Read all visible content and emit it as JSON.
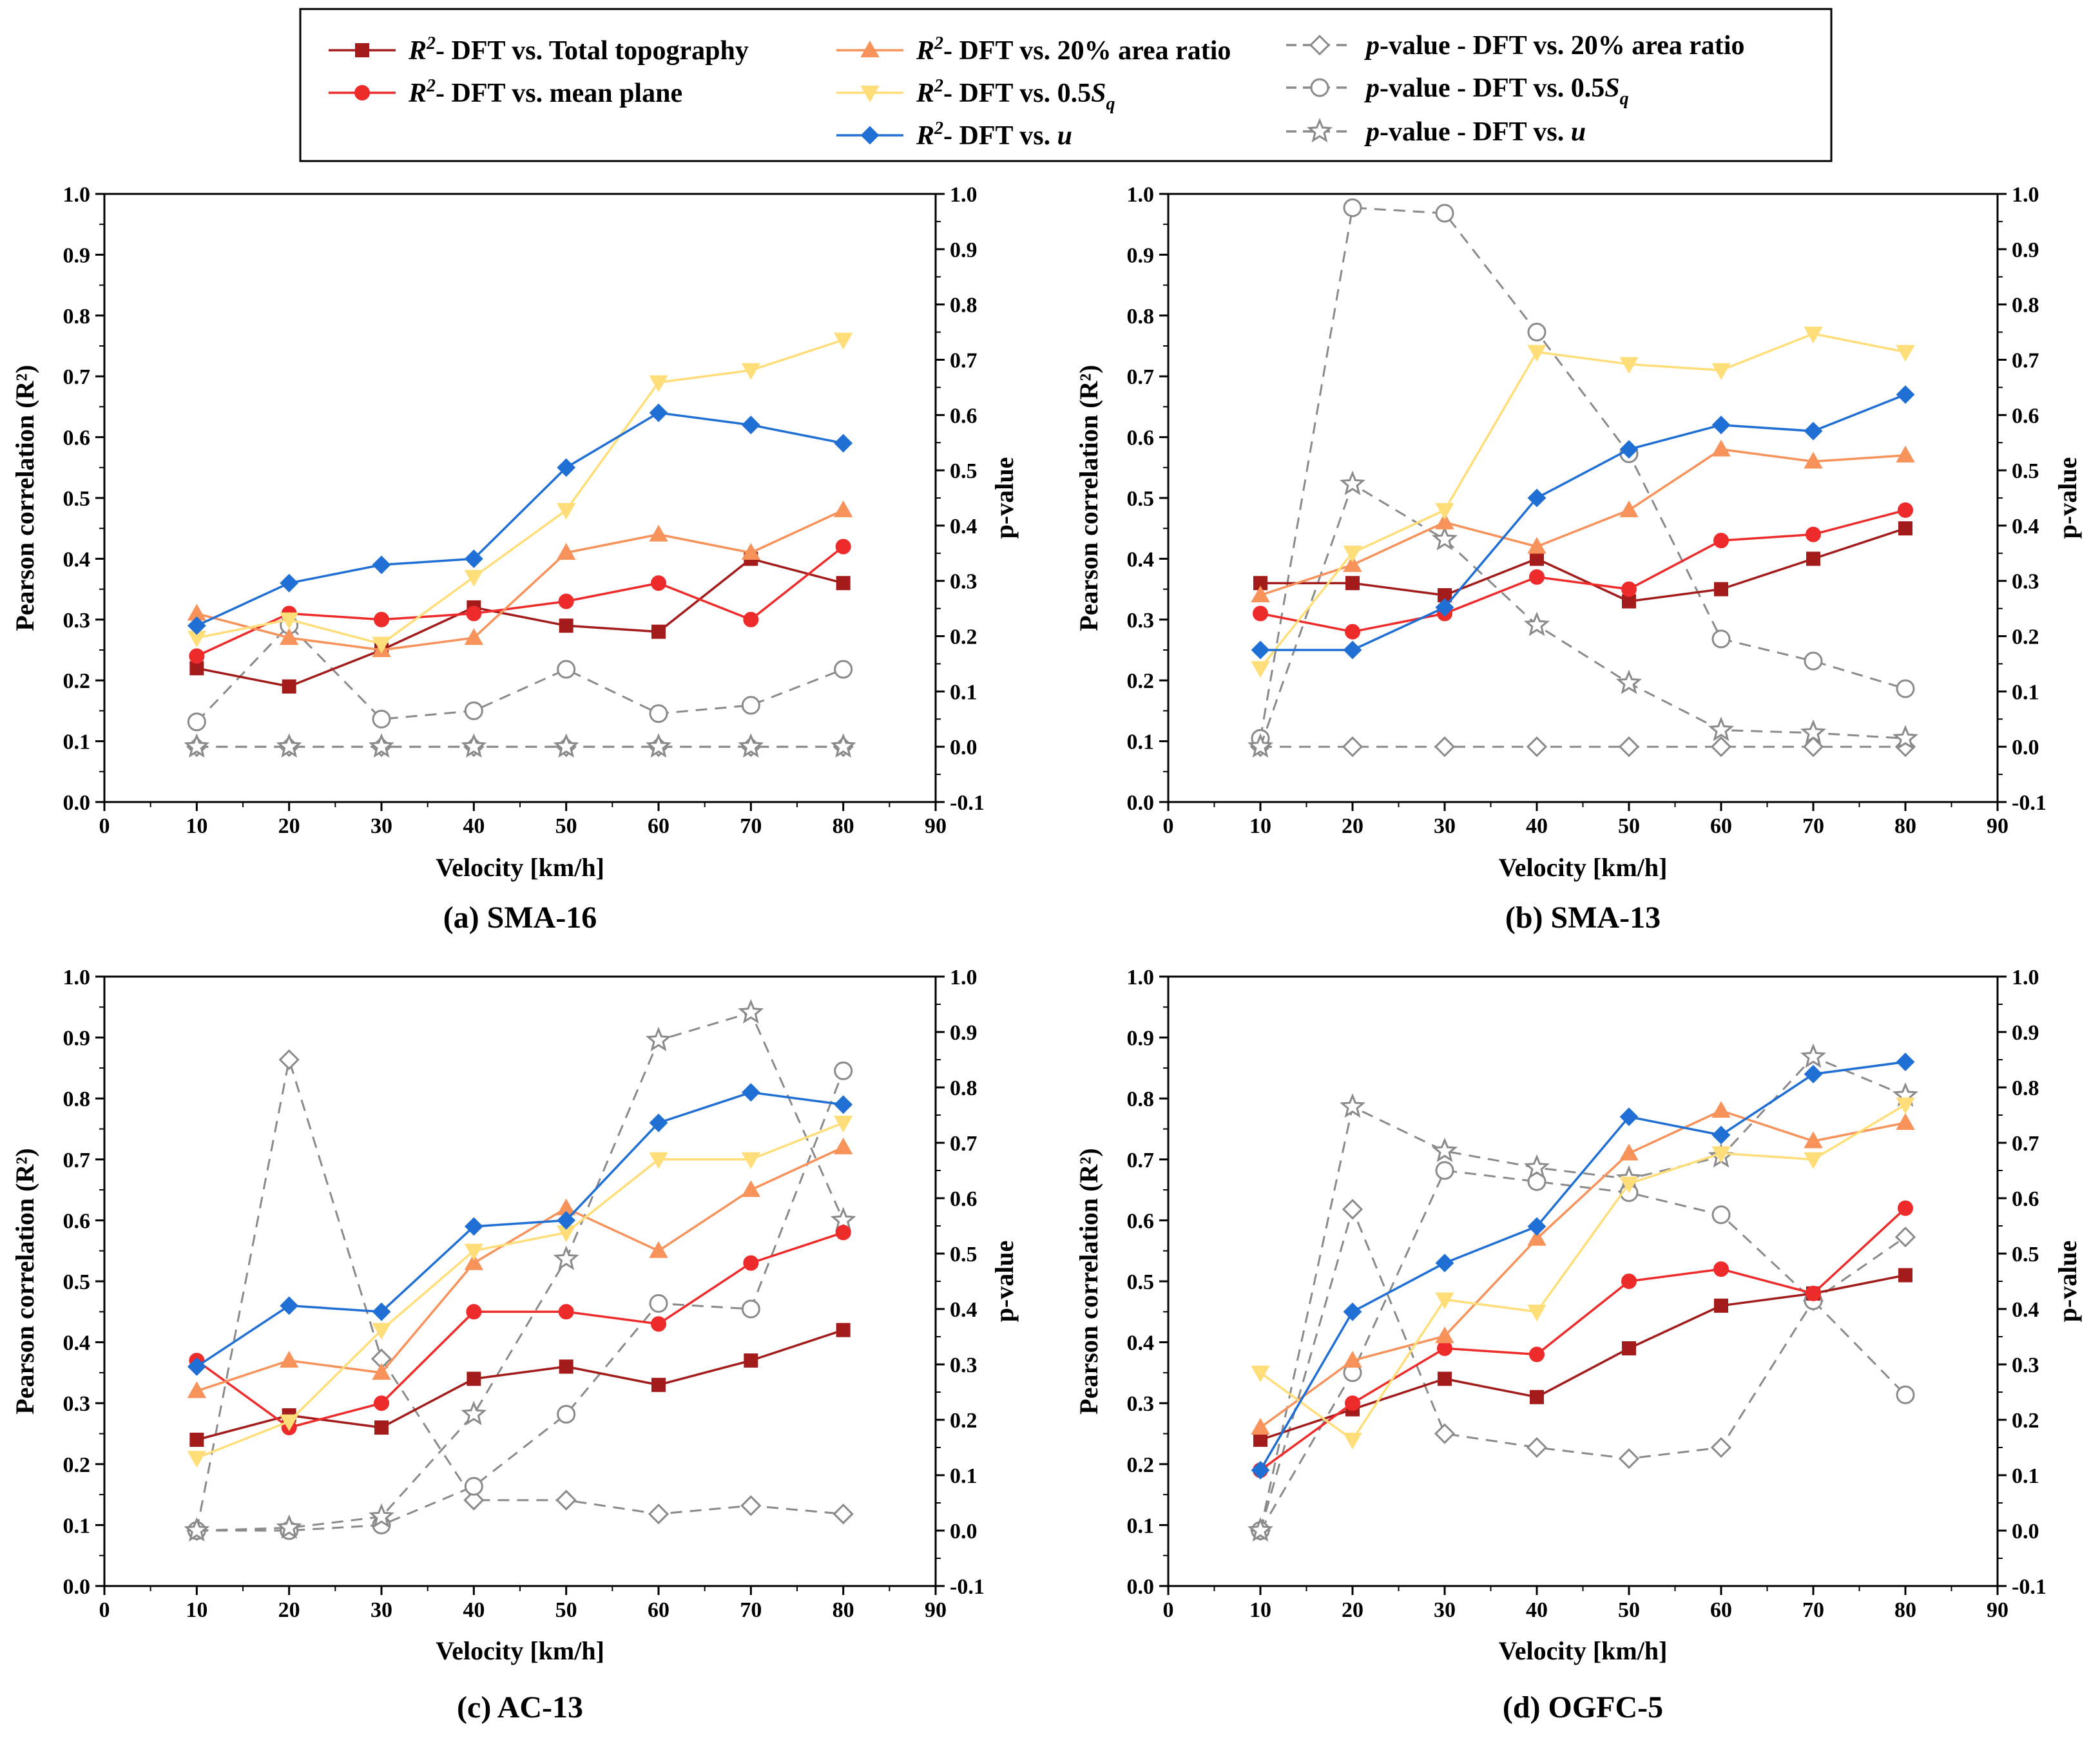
{
  "colors": {
    "total_topography": "#a31b1b",
    "mean_plane": "#ee2b2b",
    "area_ratio": "#f7925a",
    "sq": "#ffde7a",
    "u": "#1f6fd4",
    "pvalue": "#8a8a8a"
  },
  "legend": {
    "items": [
      {
        "key": "total_topography",
        "prefix": "R",
        "sup": "2",
        "text": "- DFT vs. Total topography"
      },
      {
        "key": "mean_plane",
        "prefix": "R",
        "sup": "2",
        "text": "- DFT vs. mean plane"
      },
      {
        "key": "area_ratio",
        "prefix": "R",
        "sup": "2",
        "text": "- DFT vs. 20% area ratio"
      },
      {
        "key": "sq",
        "prefix": "R",
        "sup": "2",
        "text": "- DFT vs. 0.5",
        "var": "S",
        "sub": "q"
      },
      {
        "key": "u",
        "prefix": "R",
        "sup": "2",
        "text": "- DFT vs. ",
        "var": "u"
      },
      {
        "key": "p_area",
        "prefix": "p",
        "text": "-value - DFT vs. 20% area ratio"
      },
      {
        "key": "p_sq",
        "prefix": "p",
        "text": "-value - DFT vs. 0.5",
        "var": "S",
        "sub": "q"
      },
      {
        "key": "p_u",
        "prefix": "p",
        "text": "-value - DFT vs. ",
        "var": "u"
      }
    ]
  },
  "chart_data": [
    {
      "type": "line",
      "caption": "(a) SMA-16",
      "xlabel": "Velocity [km/h]",
      "ylabel": "Pearson correlation (R²)",
      "y2label": "p-value",
      "xlim": [
        0,
        90
      ],
      "ylim": [
        0,
        1
      ],
      "y2lim": [
        -0.1,
        1.0
      ],
      "x": [
        10,
        20,
        30,
        40,
        50,
        60,
        70,
        80
      ],
      "series": [
        {
          "key": "total_topography",
          "name": "R²- DFT vs. Total topography",
          "axis": "left",
          "values": [
            0.22,
            0.19,
            0.25,
            0.32,
            0.29,
            0.28,
            0.4,
            0.36
          ]
        },
        {
          "key": "mean_plane",
          "name": "R²- DFT vs. mean plane",
          "axis": "left",
          "values": [
            0.24,
            0.31,
            0.3,
            0.31,
            0.33,
            0.36,
            0.3,
            0.42
          ]
        },
        {
          "key": "area_ratio",
          "name": "R²- DFT vs. 20% area ratio",
          "axis": "left",
          "values": [
            0.31,
            0.27,
            0.25,
            0.27,
            0.41,
            0.44,
            0.41,
            0.48
          ]
        },
        {
          "key": "sq",
          "name": "R²- DFT vs. 0.5Sq",
          "axis": "left",
          "values": [
            0.27,
            0.3,
            0.26,
            0.37,
            0.48,
            0.69,
            0.71,
            0.76
          ]
        },
        {
          "key": "u",
          "name": "R²- DFT vs. u",
          "axis": "left",
          "values": [
            0.29,
            0.36,
            0.39,
            0.4,
            0.55,
            0.64,
            0.62,
            0.59
          ]
        },
        {
          "key": "p_area",
          "name": "p-value - DFT vs. 20% area ratio",
          "axis": "right",
          "values": [
            0,
            0,
            0,
            0,
            0,
            0,
            0,
            0
          ]
        },
        {
          "key": "p_sq",
          "name": "p-value - DFT vs. 0.5Sq",
          "axis": "right",
          "values": [
            0.045,
            0.22,
            0.05,
            0.065,
            0.14,
            0.06,
            0.075,
            0.14
          ]
        },
        {
          "key": "p_u",
          "name": "p-value - DFT vs. u",
          "axis": "right",
          "values": [
            0,
            0,
            0,
            0,
            0,
            0,
            0,
            0
          ]
        }
      ]
    },
    {
      "type": "line",
      "caption": "(b) SMA-13",
      "xlabel": "Velocity [km/h]",
      "ylabel": "Pearson correlation (R²)",
      "y2label": "p-value",
      "xlim": [
        0,
        90
      ],
      "ylim": [
        0,
        1
      ],
      "y2lim": [
        -0.1,
        1.0
      ],
      "x": [
        10,
        20,
        30,
        40,
        50,
        60,
        70,
        80
      ],
      "series": [
        {
          "key": "total_topography",
          "name": "R²- DFT vs. Total topography",
          "axis": "left",
          "values": [
            0.36,
            0.36,
            0.34,
            0.4,
            0.33,
            0.35,
            0.4,
            0.45
          ]
        },
        {
          "key": "mean_plane",
          "name": "R²- DFT vs. mean plane",
          "axis": "left",
          "values": [
            0.31,
            0.28,
            0.31,
            0.37,
            0.35,
            0.43,
            0.44,
            0.48
          ]
        },
        {
          "key": "area_ratio",
          "name": "R²- DFT vs. 20% area ratio",
          "axis": "left",
          "values": [
            0.34,
            0.39,
            0.46,
            0.42,
            0.48,
            0.58,
            0.56,
            0.57
          ]
        },
        {
          "key": "sq",
          "name": "R²- DFT vs. 0.5Sq",
          "axis": "left",
          "values": [
            0.22,
            0.41,
            0.48,
            0.74,
            0.72,
            0.71,
            0.77,
            0.74
          ]
        },
        {
          "key": "u",
          "name": "R²- DFT vs. u",
          "axis": "left",
          "values": [
            0.25,
            0.25,
            0.32,
            0.5,
            0.58,
            0.62,
            0.61,
            0.67
          ]
        },
        {
          "key": "p_area",
          "name": "p-value - DFT vs. 20% area ratio",
          "axis": "right",
          "values": [
            0,
            0,
            0,
            0,
            0,
            0,
            0,
            0
          ]
        },
        {
          "key": "p_sq",
          "name": "p-value - DFT vs. 0.5Sq",
          "axis": "right",
          "values": [
            0.015,
            0.975,
            0.965,
            0.75,
            0.53,
            0.195,
            0.155,
            0.105
          ]
        },
        {
          "key": "p_u",
          "name": "p-value - DFT vs. u",
          "axis": "right",
          "values": [
            0,
            0.475,
            0.375,
            0.22,
            0.115,
            0.03,
            0.025,
            0.015
          ]
        }
      ]
    },
    {
      "type": "line",
      "caption": "(c) AC-13",
      "xlabel": "Velocity [km/h]",
      "ylabel": "Pearson correlation (R²)",
      "y2label": "p-value",
      "xlim": [
        0,
        90
      ],
      "ylim": [
        0,
        1
      ],
      "y2lim": [
        -0.1,
        1.0
      ],
      "x": [
        10,
        20,
        30,
        40,
        50,
        60,
        70,
        80
      ],
      "series": [
        {
          "key": "total_topography",
          "name": "R²- DFT vs. Total topography",
          "axis": "left",
          "values": [
            0.24,
            0.28,
            0.26,
            0.34,
            0.36,
            0.33,
            0.37,
            0.42
          ]
        },
        {
          "key": "mean_plane",
          "name": "R²- DFT vs. mean plane",
          "axis": "left",
          "values": [
            0.37,
            0.26,
            0.3,
            0.45,
            0.45,
            0.43,
            0.53,
            0.58
          ]
        },
        {
          "key": "area_ratio",
          "name": "R²- DFT vs. 20% area ratio",
          "axis": "left",
          "values": [
            0.32,
            0.37,
            0.35,
            0.53,
            0.62,
            0.55,
            0.65,
            0.72
          ]
        },
        {
          "key": "sq",
          "name": "R²- DFT vs. 0.5Sq",
          "axis": "left",
          "values": [
            0.21,
            0.27,
            0.42,
            0.55,
            0.58,
            0.7,
            0.7,
            0.76
          ]
        },
        {
          "key": "u",
          "name": "R²- DFT vs. u",
          "axis": "left",
          "values": [
            0.36,
            0.46,
            0.45,
            0.59,
            0.6,
            0.76,
            0.81,
            0.79
          ]
        },
        {
          "key": "p_area",
          "name": "p-value - DFT vs. 20% area ratio",
          "axis": "right",
          "values": [
            0,
            0.85,
            0.31,
            0.055,
            0.055,
            0.03,
            0.045,
            0.03
          ]
        },
        {
          "key": "p_sq",
          "name": "p-value - DFT vs. 0.5Sq",
          "axis": "right",
          "values": [
            0,
            0,
            0.01,
            0.08,
            0.21,
            0.41,
            0.4,
            0.83
          ]
        },
        {
          "key": "p_u",
          "name": "p-value - DFT vs. u",
          "axis": "right",
          "values": [
            0,
            0.005,
            0.025,
            0.21,
            0.49,
            0.885,
            0.935,
            0.56
          ]
        }
      ]
    },
    {
      "type": "line",
      "caption": "(d) OGFC-5",
      "xlabel": "Velocity [km/h]",
      "ylabel": "Pearson correlation (R²)",
      "y2label": "p-value",
      "xlim": [
        0,
        90
      ],
      "ylim": [
        0,
        1
      ],
      "y2lim": [
        -0.1,
        1.0
      ],
      "x": [
        10,
        20,
        30,
        40,
        50,
        60,
        70,
        80
      ],
      "series": [
        {
          "key": "total_topography",
          "name": "R²- DFT vs. Total topography",
          "axis": "left",
          "values": [
            0.24,
            0.29,
            0.34,
            0.31,
            0.39,
            0.46,
            0.48,
            0.51
          ]
        },
        {
          "key": "mean_plane",
          "name": "R²- DFT vs. mean plane",
          "axis": "left",
          "values": [
            0.19,
            0.3,
            0.39,
            0.38,
            0.5,
            0.52,
            0.48,
            0.62
          ]
        },
        {
          "key": "area_ratio",
          "name": "R²- DFT vs. 20% area ratio",
          "axis": "left",
          "values": [
            0.26,
            0.37,
            0.41,
            0.57,
            0.71,
            0.78,
            0.73,
            0.76
          ]
        },
        {
          "key": "sq",
          "name": "R²- DFT vs. 0.5Sq",
          "axis": "left",
          "values": [
            0.35,
            0.24,
            0.47,
            0.45,
            0.66,
            0.71,
            0.7,
            0.79
          ]
        },
        {
          "key": "u",
          "name": "R²- DFT vs. u",
          "axis": "left",
          "values": [
            0.19,
            0.45,
            0.53,
            0.59,
            0.77,
            0.74,
            0.84,
            0.86
          ]
        },
        {
          "key": "p_area",
          "name": "p-value - DFT vs. 20% area ratio",
          "axis": "right",
          "values": [
            0,
            0.58,
            0.175,
            0.15,
            0.13,
            0.15,
            0.415,
            0.53
          ]
        },
        {
          "key": "p_sq",
          "name": "p-value - DFT vs. 0.5Sq",
          "axis": "right",
          "values": [
            0,
            0.285,
            0.65,
            0.63,
            0.61,
            0.57,
            0.415,
            0.245
          ]
        },
        {
          "key": "p_u",
          "name": "p-value - DFT vs. u",
          "axis": "right",
          "values": [
            0,
            0.765,
            0.685,
            0.655,
            0.635,
            0.675,
            0.855,
            0.785
          ]
        }
      ]
    }
  ]
}
